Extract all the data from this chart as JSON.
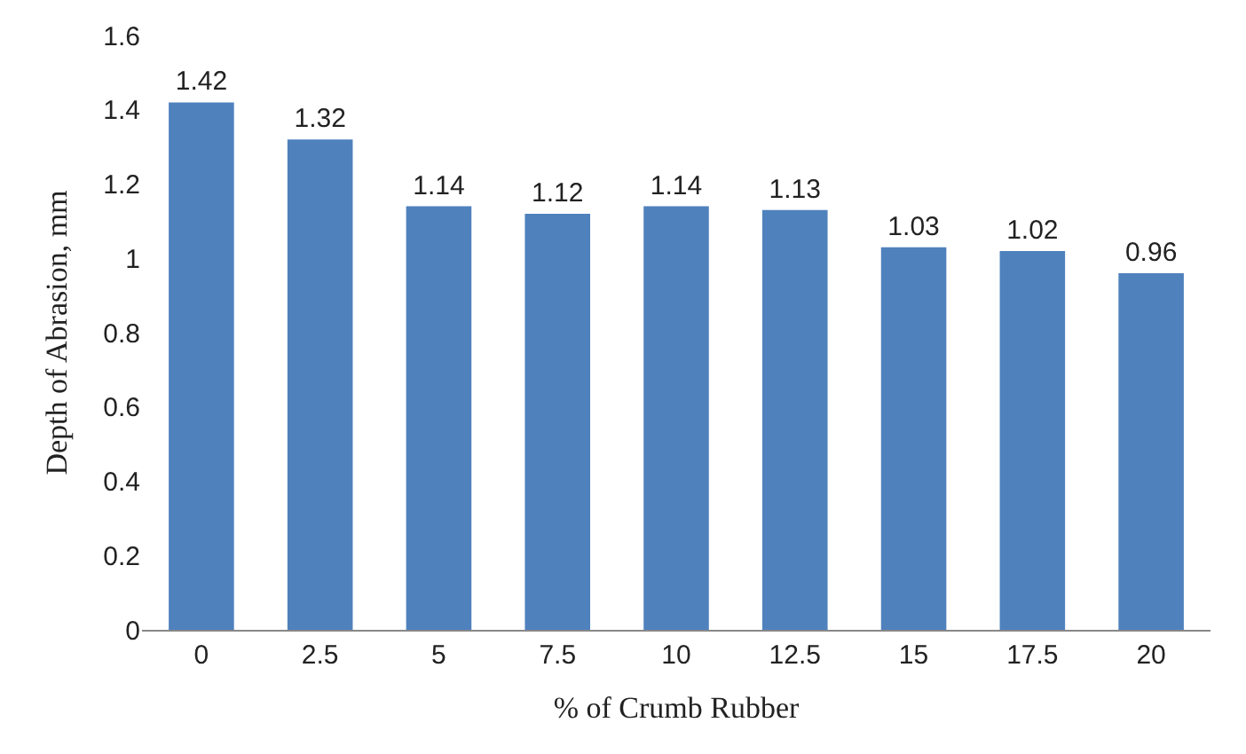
{
  "chart_data": {
    "type": "bar",
    "xlabel": "% of Crumb Rubber",
    "ylabel": "Depth of Abrasion, mm",
    "categories": [
      "0",
      "2.5",
      "5",
      "7.5",
      "10",
      "12.5",
      "15",
      "17.5",
      "20"
    ],
    "values": [
      1.42,
      1.32,
      1.14,
      1.12,
      1.14,
      1.13,
      1.03,
      1.02,
      0.96
    ],
    "color": "#4f81bd",
    "ylim": [
      0,
      1.6
    ],
    "yticks": [
      0,
      0.2,
      0.4,
      0.6,
      0.8,
      1,
      1.2,
      1.4,
      1.6
    ],
    "data_labels": true
  }
}
